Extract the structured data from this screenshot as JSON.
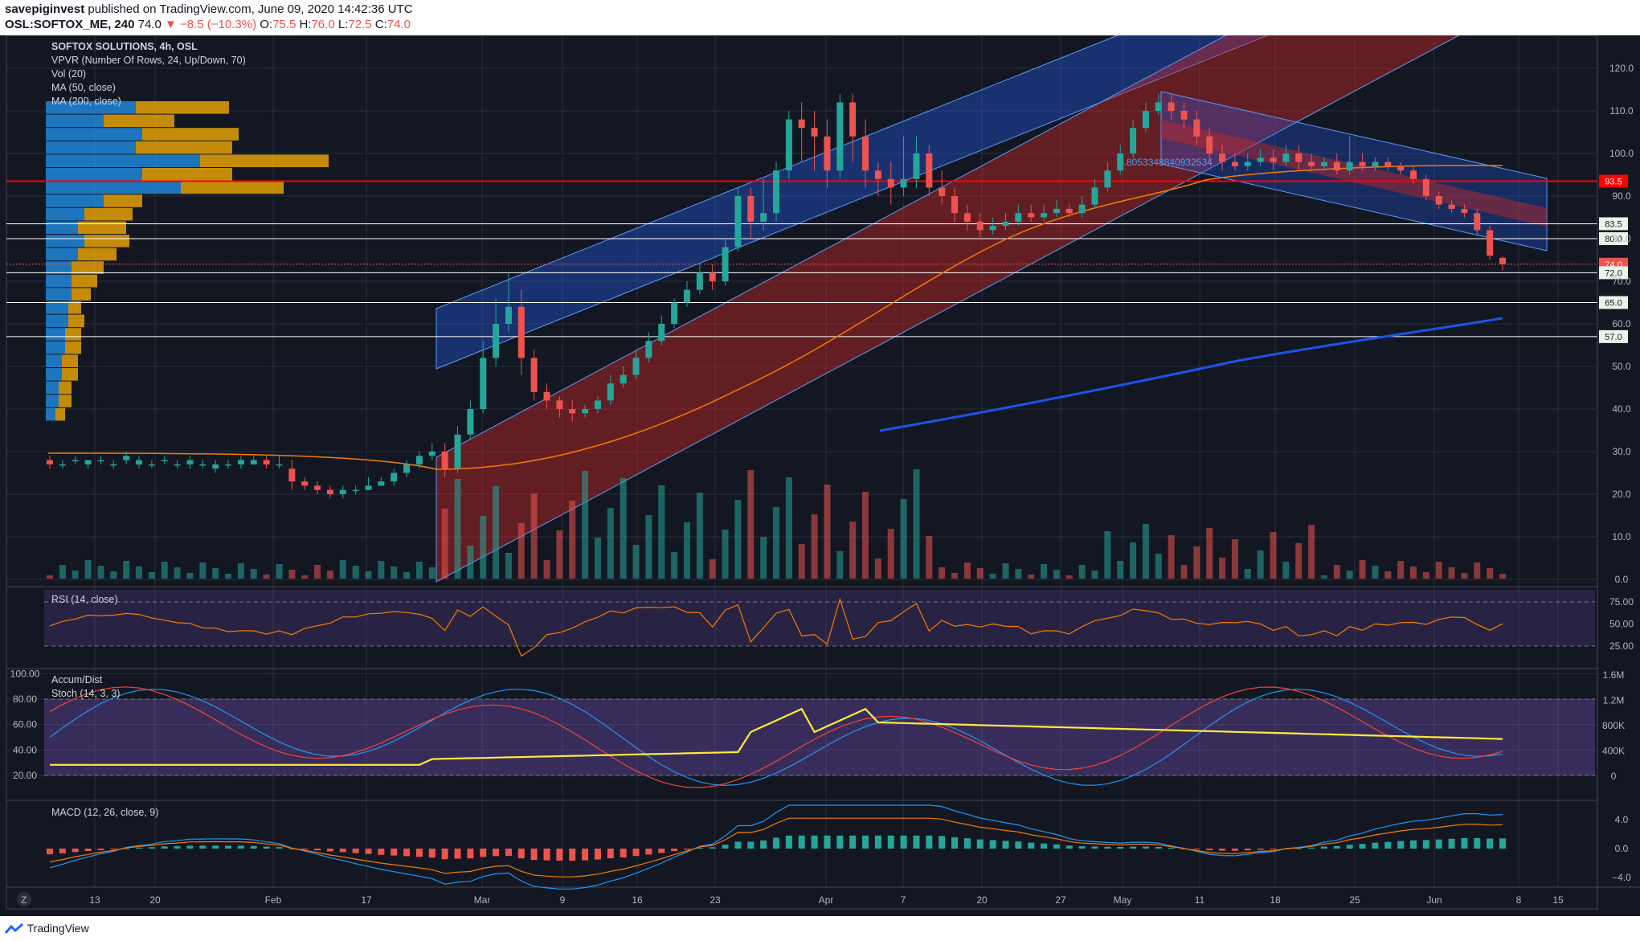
{
  "header": {
    "publisher_user": "savepiginvest",
    "publisher_rest": " published on TradingView.com, June 09, 2020 14:42:36 UTC",
    "symbol": "OSL:SOFTOX_ME, 240",
    "last": "74.0",
    "change": "−8.5 (−10.3%)",
    "o_label": "O:",
    "o": "75.5",
    "h_label": "H:",
    "h": "76.0",
    "l_label": "L:",
    "l": "72.5",
    "c_label": "C:",
    "c": "74.0"
  },
  "legend": {
    "title": "SOFTOX SOLUTIONS, 4h, OSL",
    "vpvr": "VPVR (Number Of Rows, 24, Up/Down, 70)",
    "vol": "Vol (20)",
    "ma50": "MA (50, close)",
    "ma200": "MA (200, close)",
    "rsi": "RSI (14, close)",
    "accum": "Accum/Dist",
    "stoch": "Stoch (14, 3, 3)",
    "macd": "MACD (12, 26, close, 9)",
    "pitchfork_label": "0.8053348840932534"
  },
  "chart_data": {
    "type": "candlestick",
    "price_axis": {
      "ticks": [
        0.0,
        10.0,
        20.0,
        30.0,
        40.0,
        50.0,
        60.0,
        70.0,
        80.0,
        90.0,
        100.0,
        110.0,
        120.0
      ],
      "labels": [
        "0.0",
        "10.0",
        "20.0",
        "30.0",
        "40.0",
        "50.0",
        "60.0",
        "70.0",
        "80.0",
        "90.0",
        "100.0",
        "110.0",
        "120.0"
      ]
    },
    "x_axis": {
      "labels": [
        "13",
        "20",
        "Feb",
        "17",
        "Mar",
        "9",
        "16",
        "23",
        "Apr",
        "7",
        "20",
        "27",
        "May",
        "11",
        "18",
        "25",
        "Jun",
        "8",
        "15"
      ]
    },
    "horizontal_levels": [
      {
        "value": 93.5,
        "label": "93.5",
        "color": "#ff0000"
      },
      {
        "value": 83.5,
        "label": "83.5",
        "color": "#ffffff"
      },
      {
        "value": 80.0,
        "label": "80.0",
        "color": "#ffffff"
      },
      {
        "value": 74.0,
        "label": "74.0",
        "color": "#ef5350"
      },
      {
        "value": 72.0,
        "label": "72.0",
        "color": "#ffffff"
      },
      {
        "value": 65.0,
        "label": "65.0",
        "color": "#ffffff"
      },
      {
        "value": 57.0,
        "label": "57.0",
        "color": "#ffffff"
      }
    ],
    "candles": [
      [
        28,
        27,
        29,
        26
      ],
      [
        27,
        27,
        28,
        26
      ],
      [
        28,
        28,
        29,
        27
      ],
      [
        27,
        28,
        28,
        26
      ],
      [
        28,
        28,
        29,
        27
      ],
      [
        27,
        27,
        28,
        26
      ],
      [
        28,
        29,
        30,
        27
      ],
      [
        27,
        28,
        29,
        26
      ],
      [
        27,
        27,
        28,
        26
      ],
      [
        28,
        28,
        29,
        27
      ],
      [
        27,
        27,
        28,
        26
      ],
      [
        27,
        28,
        29,
        26
      ],
      [
        27,
        27,
        28,
        26
      ],
      [
        26,
        27,
        28,
        25
      ],
      [
        27,
        27,
        28,
        26
      ],
      [
        27,
        28,
        29,
        26
      ],
      [
        27,
        28,
        29,
        27
      ],
      [
        28,
        27,
        29,
        26
      ],
      [
        27,
        27,
        29,
        26
      ],
      [
        26,
        23,
        28,
        21
      ],
      [
        23,
        22,
        24,
        21
      ],
      [
        22,
        21,
        23,
        20
      ],
      [
        21,
        20,
        22,
        19
      ],
      [
        20,
        21,
        22,
        19
      ],
      [
        21,
        21,
        22,
        20
      ],
      [
        21,
        22,
        24,
        21
      ],
      [
        22,
        23,
        24,
        22
      ],
      [
        23,
        25,
        26,
        22
      ],
      [
        25,
        27,
        28,
        24
      ],
      [
        27,
        29,
        30,
        26
      ],
      [
        29,
        30,
        32,
        28
      ],
      [
        30,
        26,
        32,
        24
      ],
      [
        26,
        34,
        36,
        25
      ],
      [
        34,
        40,
        42,
        33
      ],
      [
        40,
        52,
        56,
        39
      ],
      [
        52,
        60,
        66,
        50
      ],
      [
        60,
        64,
        72,
        58
      ],
      [
        64,
        52,
        68,
        48
      ],
      [
        52,
        44,
        54,
        42
      ],
      [
        44,
        42,
        46,
        40
      ],
      [
        42,
        40,
        43,
        38
      ],
      [
        40,
        39,
        42,
        37
      ],
      [
        39,
        40,
        41,
        38
      ],
      [
        40,
        42,
        43,
        39
      ],
      [
        42,
        46,
        48,
        41
      ],
      [
        46,
        48,
        50,
        45
      ],
      [
        48,
        52,
        54,
        47
      ],
      [
        52,
        56,
        58,
        51
      ],
      [
        56,
        60,
        62,
        55
      ],
      [
        60,
        65,
        66,
        59
      ],
      [
        65,
        68,
        70,
        64
      ],
      [
        68,
        72,
        74,
        67
      ],
      [
        72,
        70,
        74,
        68
      ],
      [
        70,
        78,
        80,
        69
      ],
      [
        78,
        90,
        92,
        77
      ],
      [
        90,
        84,
        92,
        80
      ],
      [
        84,
        86,
        94,
        82
      ],
      [
        86,
        96,
        98,
        84
      ],
      [
        96,
        108,
        110,
        94
      ],
      [
        108,
        106,
        112,
        98
      ],
      [
        106,
        104,
        110,
        96
      ],
      [
        104,
        96,
        108,
        92
      ],
      [
        96,
        112,
        114,
        94
      ],
      [
        112,
        104,
        114,
        98
      ],
      [
        104,
        96,
        108,
        92
      ],
      [
        96,
        94,
        98,
        90
      ],
      [
        94,
        92,
        98,
        88
      ],
      [
        92,
        94,
        104,
        90
      ],
      [
        94,
        100,
        104,
        92
      ],
      [
        100,
        92,
        102,
        90
      ],
      [
        92,
        90,
        96,
        88
      ],
      [
        90,
        86,
        92,
        84
      ],
      [
        86,
        84,
        88,
        82
      ],
      [
        84,
        82,
        86,
        80
      ],
      [
        82,
        83,
        85,
        81
      ],
      [
        83,
        84,
        86,
        82
      ],
      [
        84,
        86,
        88,
        83
      ],
      [
        86,
        85,
        88,
        84
      ],
      [
        85,
        86,
        88,
        84
      ],
      [
        86,
        87,
        89,
        85
      ],
      [
        87,
        86,
        88,
        85
      ],
      [
        86,
        88,
        90,
        85
      ],
      [
        88,
        92,
        94,
        87
      ],
      [
        92,
        96,
        98,
        91
      ],
      [
        96,
        100,
        102,
        95
      ],
      [
        100,
        106,
        108,
        99
      ],
      [
        106,
        110,
        112,
        105
      ],
      [
        110,
        112,
        114,
        109
      ],
      [
        112,
        110,
        114,
        108
      ],
      [
        110,
        108,
        112,
        106
      ],
      [
        108,
        104,
        110,
        102
      ],
      [
        104,
        100,
        106,
        98
      ],
      [
        100,
        98,
        102,
        96
      ],
      [
        98,
        97,
        100,
        96
      ],
      [
        97,
        98,
        100,
        96
      ],
      [
        98,
        99,
        101,
        97
      ],
      [
        99,
        98,
        101,
        96
      ],
      [
        98,
        100,
        102,
        97
      ],
      [
        100,
        98,
        102,
        96
      ],
      [
        98,
        97,
        100,
        96
      ],
      [
        97,
        98,
        99,
        96
      ],
      [
        98,
        96,
        100,
        95
      ],
      [
        96,
        98,
        104,
        95
      ],
      [
        98,
        97,
        100,
        96
      ],
      [
        97,
        98,
        99,
        96
      ],
      [
        98,
        97,
        99,
        96
      ],
      [
        97,
        96,
        98,
        95
      ],
      [
        96,
        94,
        97,
        93
      ],
      [
        94,
        90,
        95,
        89
      ],
      [
        90,
        88,
        91,
        87
      ],
      [
        88,
        87,
        89,
        86
      ],
      [
        87,
        86,
        88,
        85
      ],
      [
        86,
        82,
        87,
        81
      ],
      [
        82,
        76,
        83,
        75
      ],
      [
        75.5,
        74,
        76,
        72.5
      ]
    ],
    "vpvr_rows": [
      [
        0.28,
        0.29
      ],
      [
        0.18,
        0.22
      ],
      [
        0.3,
        0.3
      ],
      [
        0.28,
        0.3
      ],
      [
        0.48,
        0.4
      ],
      [
        0.3,
        0.28
      ],
      [
        0.42,
        0.32
      ],
      [
        0.18,
        0.12
      ],
      [
        0.12,
        0.15
      ],
      [
        0.1,
        0.15
      ],
      [
        0.12,
        0.14
      ],
      [
        0.1,
        0.12
      ],
      [
        0.08,
        0.1
      ],
      [
        0.08,
        0.08
      ],
      [
        0.08,
        0.06
      ],
      [
        0.07,
        0.04
      ],
      [
        0.07,
        0.05
      ],
      [
        0.06,
        0.05
      ],
      [
        0.06,
        0.05
      ],
      [
        0.05,
        0.05
      ],
      [
        0.05,
        0.05
      ],
      [
        0.04,
        0.04
      ],
      [
        0.04,
        0.04
      ],
      [
        0.03,
        0.03
      ]
    ],
    "rsi_axis": {
      "ticks": [
        25.0,
        50.0,
        75.0
      ],
      "labels": [
        "25.00",
        "50.00",
        "75.00"
      ]
    },
    "stoch_axis": {
      "ticks": [
        20.0,
        40.0,
        60.0,
        80.0,
        100.0
      ],
      "labels": [
        "20.00",
        "40.00",
        "60.00",
        "80.00",
        "100.00"
      ]
    },
    "accum_axis": {
      "labels": [
        "0",
        "400K",
        "800K",
        "1.2M",
        "1.6M"
      ]
    },
    "macd_axis": {
      "ticks": [
        -4.0,
        0.0,
        4.0
      ],
      "labels": [
        "−4.0",
        "0.0",
        "4.0"
      ]
    }
  },
  "colors": {
    "bg": "#131722",
    "up": "#26a69a",
    "down": "#ef5350",
    "grid": "#2a2e39",
    "ma50": "#f57c00",
    "ma200": "#1e53e5",
    "rsi": "#f57c00",
    "stoch_k": "#2196f3",
    "stoch_d": "#f44336",
    "accum": "#ffeb3b"
  },
  "footer": {
    "brand": "TradingView",
    "pane_marker": "Z"
  }
}
